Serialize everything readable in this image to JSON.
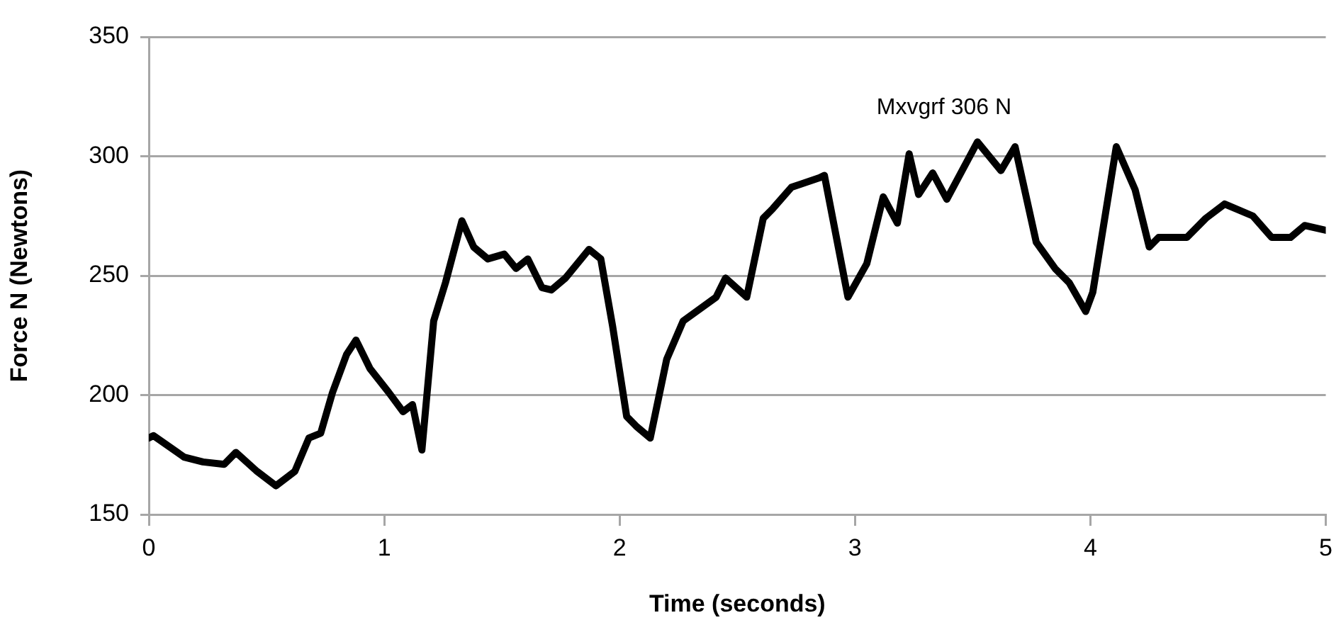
{
  "chart_data": {
    "type": "line",
    "xlabel": "Time (seconds)",
    "ylabel": "Force N (Newtons)",
    "x": [
      0,
      0.02,
      0.15,
      0.23,
      0.32,
      0.37,
      0.46,
      0.54,
      0.62,
      0.68,
      0.73,
      0.78,
      0.84,
      0.88,
      0.94,
      1.02,
      1.08,
      1.12,
      1.16,
      1.21,
      1.26,
      1.33,
      1.38,
      1.44,
      1.51,
      1.56,
      1.61,
      1.67,
      1.71,
      1.77,
      1.87,
      1.92,
      1.97,
      2.03,
      2.07,
      2.13,
      2.2,
      2.27,
      2.41,
      2.45,
      2.54,
      2.61,
      2.65,
      2.73,
      2.85,
      2.87,
      2.97,
      3.05,
      3.12,
      3.18,
      3.23,
      3.27,
      3.33,
      3.39,
      3.52,
      3.62,
      3.68,
      3.77,
      3.85,
      3.91,
      3.98,
      4.01,
      4.11,
      4.19,
      4.25,
      4.29,
      4.41,
      4.49,
      4.57,
      4.69,
      4.77,
      4.85,
      4.91,
      5
    ],
    "series": [
      {
        "color": "#000000",
        "values": [
          182,
          183,
          174,
          172,
          171,
          176,
          168,
          162,
          168,
          182,
          184,
          201,
          217,
          223,
          211,
          201,
          193,
          196,
          177,
          231,
          247,
          273,
          262,
          257,
          259,
          253,
          257,
          245,
          244,
          249,
          261,
          257,
          229,
          191,
          187,
          182,
          215,
          231,
          241,
          249,
          241,
          274,
          278,
          287,
          291,
          292,
          241,
          255,
          283,
          272,
          301,
          284,
          293,
          282,
          306,
          294,
          304,
          264,
          253,
          247,
          235,
          243,
          304,
          286,
          262,
          266,
          266,
          274,
          280,
          275,
          266,
          266,
          271,
          269
        ]
      }
    ],
    "annotations": [
      {
        "text": "Mxvgrf 306 N",
        "x": 3.52,
        "y": 306
      }
    ],
    "xlim": [
      0,
      5
    ],
    "xticks": [
      0,
      1,
      2,
      3,
      4,
      5
    ],
    "ylim": [
      150,
      350
    ],
    "yticks": [
      150,
      200,
      250,
      300,
      350
    ],
    "grid": "y",
    "marker": "none",
    "line_style": "solid",
    "legend": false
  }
}
